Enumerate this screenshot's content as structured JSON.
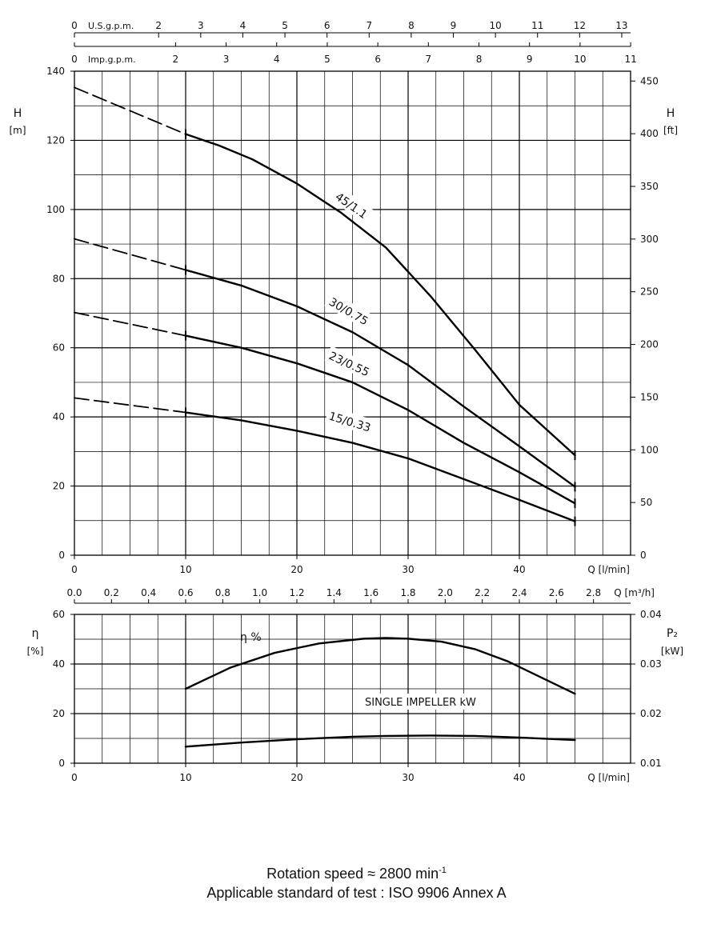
{
  "chart_data": [
    {
      "type": "line",
      "x_axis_bottom": {
        "label": "Q [l/min]",
        "range": [
          0,
          50
        ],
        "ticks": [
          0,
          10,
          20,
          30,
          40
        ],
        "tick_labels": [
          "0",
          "10",
          "20",
          "30",
          "40"
        ]
      },
      "x_axis_top_us": {
        "label": "U.S.g.p.m.",
        "ticks": [
          0,
          2,
          3,
          4,
          5,
          6,
          7,
          8,
          9,
          10,
          11,
          12,
          13
        ],
        "tick_labels": [
          "0",
          "2",
          "3",
          "4",
          "5",
          "6",
          "7",
          "8",
          "9",
          "10",
          "11",
          "12",
          "13"
        ]
      },
      "x_axis_top_imp": {
        "label": "Imp.g.p.m.",
        "ticks": [
          0,
          2,
          3,
          4,
          5,
          6,
          7,
          8,
          9,
          10,
          11
        ],
        "tick_labels": [
          "0",
          "2",
          "3",
          "4",
          "5",
          "6",
          "7",
          "8",
          "9",
          "10",
          "11"
        ]
      },
      "y_axis_left": {
        "label": "H",
        "unit": "[m]",
        "range": [
          0,
          140
        ],
        "ticks": [
          0,
          20,
          40,
          60,
          80,
          100,
          120,
          140
        ],
        "tick_labels": [
          "0",
          "20",
          "40",
          "60",
          "80",
          "100",
          "120",
          "140"
        ]
      },
      "y_axis_right": {
        "label": "H",
        "unit": "[ft]",
        "ticks": [
          0,
          50,
          100,
          150,
          200,
          250,
          300,
          350,
          400,
          450
        ],
        "tick_labels": [
          "0",
          "50",
          "100",
          "150",
          "200",
          "250",
          "300",
          "350",
          "400",
          "450"
        ]
      },
      "grid": true,
      "series": [
        {
          "name": "45/1.1",
          "dashed": {
            "x": [
              0,
              10
            ],
            "y": [
              135.3,
              121.8
            ]
          },
          "x": [
            10,
            13,
            16,
            20,
            24,
            28,
            32,
            36,
            40,
            45
          ],
          "y": [
            121.8,
            118.5,
            114.5,
            107.5,
            99.0,
            89.0,
            75.0,
            59.5,
            43.5,
            28.9
          ]
        },
        {
          "name": "30/0.75",
          "dashed": {
            "x": [
              0,
              10
            ],
            "y": [
              91.5,
              82.5
            ]
          },
          "x": [
            10,
            15,
            20,
            25,
            30,
            35,
            40,
            45
          ],
          "y": [
            82.5,
            78.0,
            72.0,
            64.5,
            55.0,
            43.0,
            31.5,
            19.8
          ]
        },
        {
          "name": "23/0.55",
          "dashed": {
            "x": [
              0,
              10
            ],
            "y": [
              70.2,
              63.5
            ]
          },
          "x": [
            10,
            15,
            20,
            25,
            30,
            35,
            40,
            45
          ],
          "y": [
            63.5,
            60.0,
            55.5,
            50.0,
            42.0,
            32.5,
            24.0,
            15.0
          ]
        },
        {
          "name": "15/0.33",
          "dashed": {
            "x": [
              0,
              10
            ],
            "y": [
              45.5,
              41.3
            ]
          },
          "x": [
            10,
            15,
            20,
            25,
            30,
            35,
            40,
            45
          ],
          "y": [
            41.3,
            39.0,
            36.0,
            32.5,
            28.0,
            22.0,
            16.0,
            9.8
          ]
        }
      ]
    },
    {
      "type": "line",
      "x_axis_bottom": {
        "label": "Q [l/min]",
        "range": [
          0,
          50
        ],
        "ticks": [
          0,
          10,
          20,
          30,
          40
        ],
        "tick_labels": [
          "0",
          "10",
          "20",
          "30",
          "40"
        ]
      },
      "x_axis_top_m3h": {
        "label": "Q [m³/h]",
        "ticks": [
          0.0,
          0.2,
          0.4,
          0.6,
          0.8,
          1.0,
          1.2,
          1.4,
          1.6,
          1.8,
          2.0,
          2.2,
          2.4,
          2.6,
          2.8
        ],
        "tick_labels": [
          "0.0",
          "0.2",
          "0.4",
          "0.6",
          "0.8",
          "1.0",
          "1.2",
          "1.4",
          "1.6",
          "1.8",
          "2.0",
          "2.2",
          "2.4",
          "2.6",
          "2.8"
        ]
      },
      "y_axis_left": {
        "label": "η",
        "unit": "[%]",
        "range": [
          0,
          60
        ],
        "ticks": [
          0,
          20,
          40,
          60
        ],
        "tick_labels": [
          "0",
          "20",
          "40",
          "60"
        ]
      },
      "y_axis_right": {
        "label": "P₂",
        "unit": "[kW]",
        "range": [
          0.01,
          0.04
        ],
        "ticks": [
          0.01,
          0.02,
          0.03,
          0.04
        ],
        "tick_labels": [
          "0.01",
          "0.02",
          "0.03",
          "0.04"
        ]
      },
      "grid": true,
      "series": [
        {
          "name": "η %",
          "axis": "left",
          "x": [
            10,
            14,
            18,
            22,
            26,
            28,
            30,
            33,
            36,
            39,
            42,
            45
          ],
          "y": [
            30.0,
            38.5,
            44.5,
            48.3,
            50.2,
            50.5,
            50.2,
            49.0,
            46.0,
            41.0,
            34.5,
            28.0
          ]
        },
        {
          "name": "SINGLE IMPELLER kW",
          "axis": "right",
          "x": [
            10,
            15,
            20,
            25,
            28,
            32,
            36,
            40,
            45
          ],
          "y": [
            0.01333,
            0.01417,
            0.01483,
            0.01533,
            0.0155,
            0.01558,
            0.0155,
            0.01517,
            0.01467
          ]
        }
      ]
    }
  ],
  "footer": {
    "line1_prefix": "Rotation speed ≈ 2800 min",
    "line1_exp": "-1",
    "line2": "Applicable standard of test : ISO 9906 Annex A"
  }
}
